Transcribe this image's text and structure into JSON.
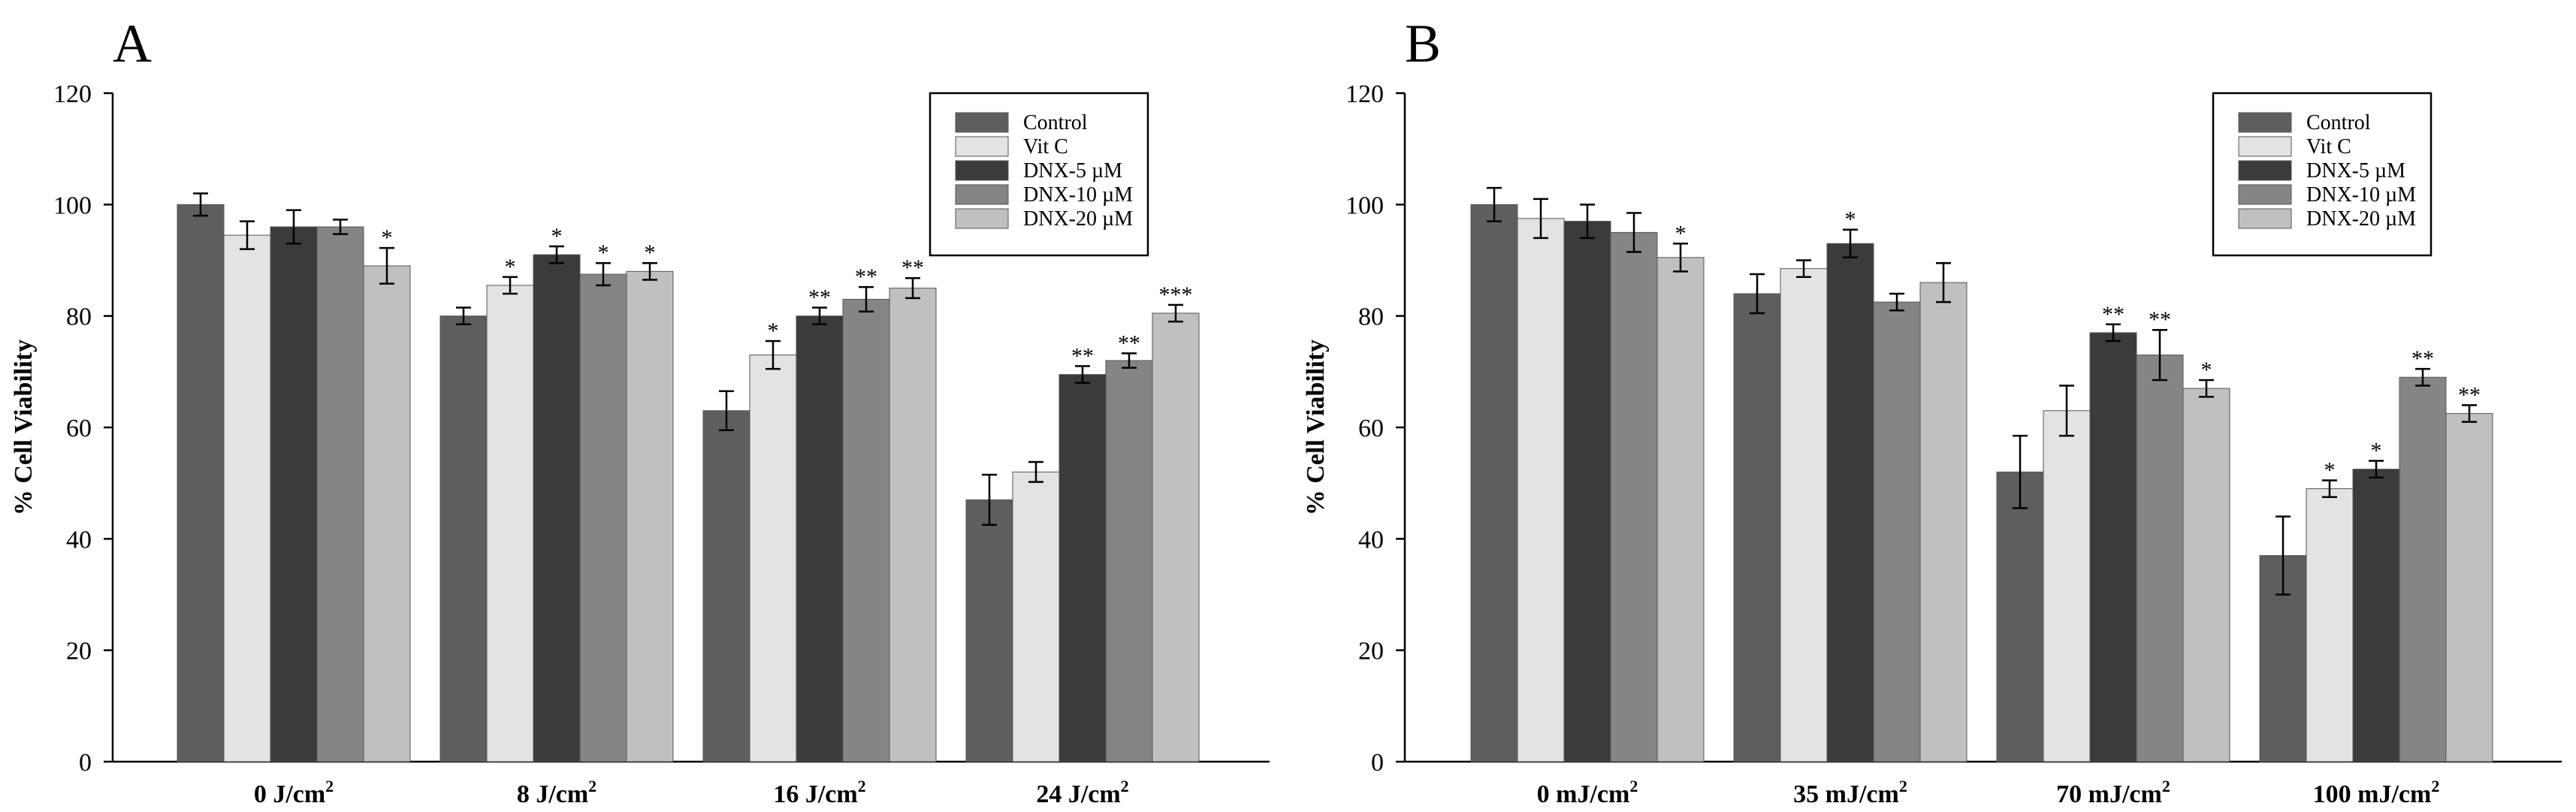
{
  "figure": {
    "colors": [
      "#5e5e5e",
      "#e3e3e3",
      "#3b3b3b",
      "#858585",
      "#c0c0c0"
    ]
  },
  "chart_data": [
    {
      "type": "bar",
      "panel_label": "A",
      "ylabel": "% Cell Viability",
      "xlabel": "",
      "ylim": [
        0,
        120
      ],
      "yticks": [
        0,
        20,
        40,
        60,
        80,
        100,
        120
      ],
      "legend_position": "top-right",
      "categories": [
        {
          "number": "0",
          "unit": "J/cm",
          "sup": "2"
        },
        {
          "number": "8",
          "unit": "J/cm",
          "sup": "2"
        },
        {
          "number": "16",
          "unit": "J/cm",
          "sup": "2"
        },
        {
          "number": "24",
          "unit": "J/cm",
          "sup": "2"
        }
      ],
      "series": [
        {
          "name": "Control",
          "values": [
            100,
            80,
            63,
            47
          ],
          "errors": [
            2,
            1.5,
            3.5,
            4.5
          ],
          "sig": [
            "",
            "",
            "",
            ""
          ]
        },
        {
          "name": "Vit C",
          "values": [
            94.5,
            85.5,
            73,
            52
          ],
          "errors": [
            2.5,
            1.5,
            2.5,
            1.8
          ],
          "sig": [
            "",
            "*",
            "*",
            ""
          ]
        },
        {
          "name": "DNX-5 µM",
          "values": [
            96,
            91,
            80,
            69.5
          ],
          "errors": [
            3,
            1.5,
            1.5,
            1.5
          ],
          "sig": [
            "",
            "*",
            "**",
            "**"
          ]
        },
        {
          "name": "DNX-10 µM",
          "values": [
            96,
            87.5,
            83,
            72
          ],
          "errors": [
            1.3,
            2,
            2.2,
            1.3
          ],
          "sig": [
            "",
            "*",
            "**",
            "**"
          ]
        },
        {
          "name": "DNX-20 µM",
          "values": [
            89,
            88,
            85,
            80.5
          ],
          "errors": [
            3.2,
            1.5,
            1.8,
            1.5
          ],
          "sig": [
            "*",
            "*",
            "**",
            "***"
          ]
        }
      ]
    },
    {
      "type": "bar",
      "panel_label": "B",
      "ylabel": "% Cell Viability",
      "xlabel": "",
      "ylim": [
        0,
        120
      ],
      "yticks": [
        0,
        20,
        40,
        60,
        80,
        100,
        120
      ],
      "legend_position": "top-right",
      "categories": [
        {
          "number": "0",
          "unit": "mJ/cm",
          "sup": "2"
        },
        {
          "number": "35",
          "unit": "mJ/cm",
          "sup": "2"
        },
        {
          "number": "70",
          "unit": "mJ/cm",
          "sup": "2"
        },
        {
          "number": "100",
          "unit": "mJ/cm",
          "sup": "2"
        }
      ],
      "series": [
        {
          "name": "Control",
          "values": [
            100,
            84,
            52,
            37
          ],
          "errors": [
            3,
            3.5,
            6.5,
            7
          ],
          "sig": [
            "",
            "",
            "",
            ""
          ]
        },
        {
          "name": "Vit C",
          "values": [
            97.5,
            88.5,
            63,
            49
          ],
          "errors": [
            3.5,
            1.5,
            4.5,
            1.5
          ],
          "sig": [
            "",
            "",
            "",
            "*"
          ]
        },
        {
          "name": "DNX-5 µM",
          "values": [
            97,
            93,
            77,
            52.5
          ],
          "errors": [
            3,
            2.5,
            1.5,
            1.5
          ],
          "sig": [
            "",
            "*",
            "**",
            "*"
          ]
        },
        {
          "name": "DNX-10 µM",
          "values": [
            95,
            82.5,
            73,
            69
          ],
          "errors": [
            3.5,
            1.5,
            4.5,
            1.5
          ],
          "sig": [
            "",
            "",
            "**",
            "**"
          ]
        },
        {
          "name": "DNX-20 µM",
          "values": [
            90.5,
            86,
            67,
            62.5
          ],
          "errors": [
            2.5,
            3.5,
            1.5,
            1.5
          ],
          "sig": [
            "*",
            "",
            "*",
            "**"
          ]
        }
      ]
    }
  ]
}
